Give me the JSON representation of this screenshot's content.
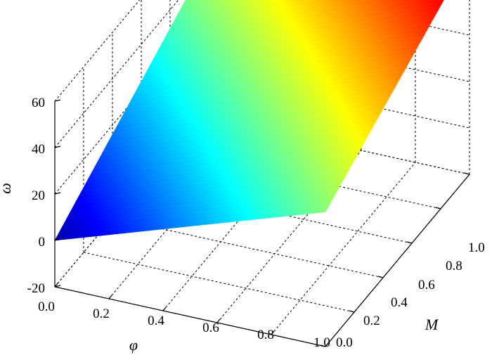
{
  "chart_data": {
    "type": "surface",
    "xlabel": "φ",
    "ylabel": "M",
    "zlabel": "ω",
    "x_ticks": [
      "0.0",
      "0.2",
      "0.4",
      "0.6",
      "0.8",
      "1.0"
    ],
    "y_ticks": [
      "0.0",
      "0.2",
      "0.4",
      "0.6",
      "0.8",
      "1.0"
    ],
    "z_ticks": [
      "-20",
      "0",
      "20",
      "40",
      "60"
    ],
    "xlim": [
      0,
      1
    ],
    "ylim": [
      0,
      1
    ],
    "zlim": [
      -20,
      60
    ],
    "grid": true,
    "colormap": "jet",
    "surface": {
      "x_range": [
        0,
        1
      ],
      "y_range": [
        0,
        1
      ],
      "z_corners": {
        "x0_y0": 0,
        "x1_y0": 38,
        "x0_y1": 40,
        "x1_y1": 75
      }
    }
  }
}
